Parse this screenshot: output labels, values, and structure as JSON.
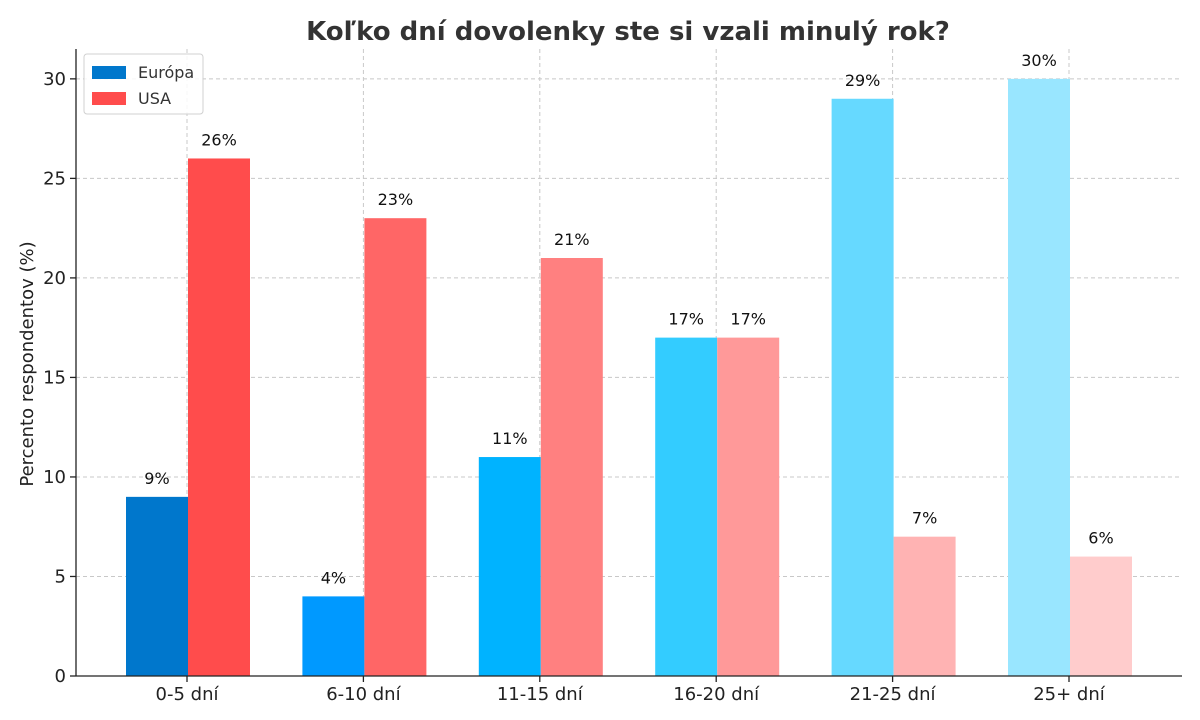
{
  "chart_data": {
    "type": "bar",
    "title": "Koľko dní dovolenky ste si vzali minulý rok?",
    "xlabel": "",
    "ylabel": "Percento respondentov (%)",
    "categories": [
      "0-5 dní",
      "6-10 dní",
      "11-15 dní",
      "16-20 dní",
      "21-25 dní",
      "25+ dní"
    ],
    "series": [
      {
        "name": "Európa",
        "legend_color": "#0077cc",
        "values": [
          9,
          4,
          11,
          17,
          29,
          30
        ],
        "labels": [
          "9%",
          "4%",
          "11%",
          "17%",
          "29%",
          "30%"
        ],
        "colors": [
          "#0077cc",
          "#0099ff",
          "#00b3ff",
          "#33ccff",
          "#66d9ff",
          "#99e6ff"
        ]
      },
      {
        "name": "USA",
        "legend_color": "#ff4c4c",
        "values": [
          26,
          23,
          21,
          17,
          7,
          6
        ],
        "labels": [
          "26%",
          "23%",
          "21%",
          "17%",
          "7%",
          "6%"
        ],
        "colors": [
          "#ff4c4c",
          "#ff6666",
          "#ff8080",
          "#ff9999",
          "#ffb3b3",
          "#ffcccc"
        ]
      }
    ],
    "yticks": [
      0,
      5,
      10,
      15,
      20,
      25,
      30
    ],
    "ylim": [
      0,
      31.5
    ],
    "grid": true,
    "legend_position": "top-left"
  }
}
